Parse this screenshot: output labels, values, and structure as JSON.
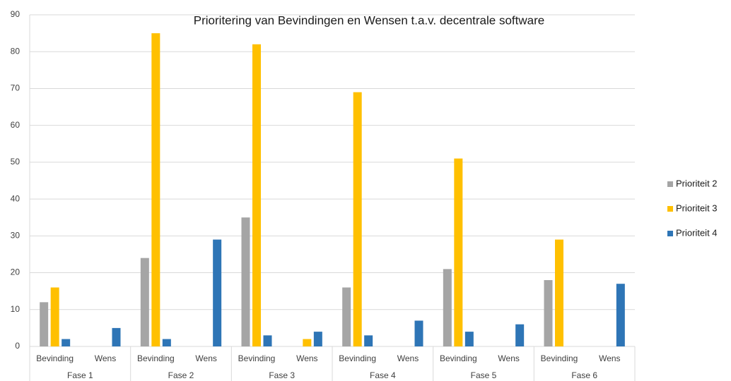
{
  "chart_data": {
    "type": "bar",
    "title": "Prioritering van Bevindingen en Wensen t.a.v. decentrale software",
    "groups": [
      "Fase 1",
      "Fase 2",
      "Fase 3",
      "Fase 4",
      "Fase 5",
      "Fase 6"
    ],
    "categories": [
      "Bevinding",
      "Wens",
      "Bevinding",
      "Wens",
      "Bevinding",
      "Wens",
      "Bevinding",
      "Wens",
      "Bevinding",
      "Wens",
      "Bevinding",
      "Wens"
    ],
    "series": [
      {
        "name": "Prioriteit 2",
        "color": "#a5a5a5",
        "values": [
          12,
          null,
          24,
          null,
          35,
          null,
          16,
          null,
          21,
          null,
          18,
          null
        ]
      },
      {
        "name": "Prioriteit 3",
        "color": "#ffc000",
        "values": [
          16,
          null,
          85,
          null,
          82,
          2,
          69,
          null,
          51,
          null,
          29,
          null
        ]
      },
      {
        "name": "Prioriteit 4",
        "color": "#2e75b6",
        "values": [
          2,
          5,
          2,
          29,
          3,
          4,
          3,
          7,
          4,
          6,
          null,
          17
        ]
      }
    ],
    "ylim": [
      0,
      90
    ],
    "yticks": [
      0,
      10,
      20,
      30,
      40,
      50,
      60,
      70,
      80,
      90
    ],
    "grid": true,
    "legend": "right"
  }
}
